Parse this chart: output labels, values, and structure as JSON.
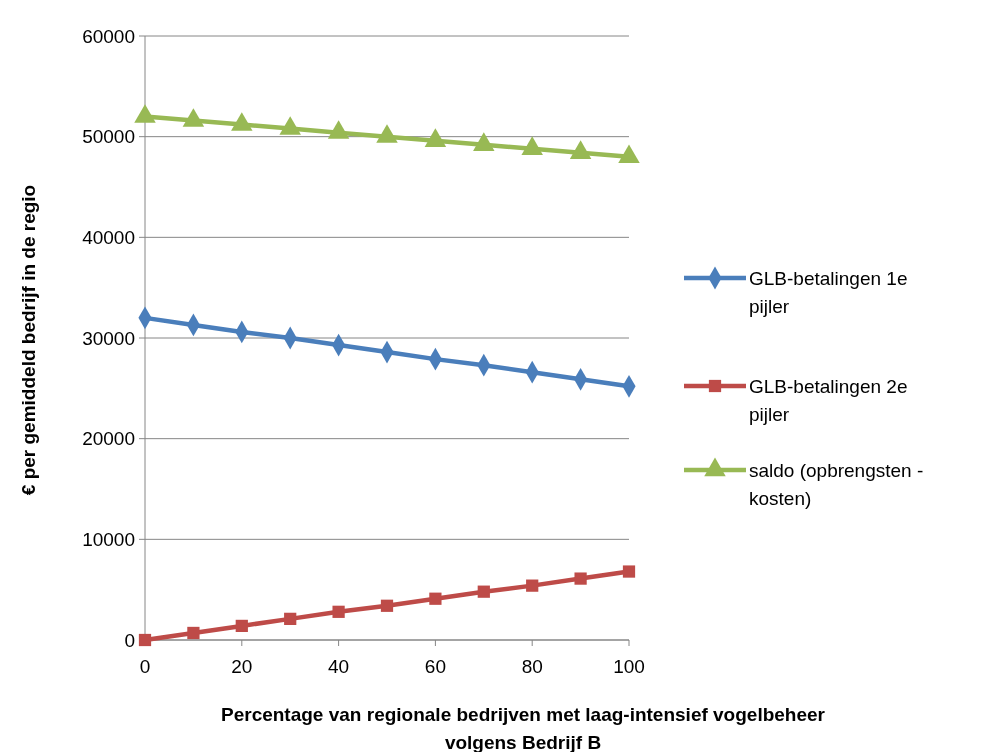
{
  "chart_data": {
    "type": "line",
    "xlabel": "Percentage van regionale bedrijven met laag-intensief vogelbeheer volgens Bedrijf B",
    "ylabel": "€ per gemiddeld bedrijf in de regio",
    "x": [
      0,
      10,
      20,
      30,
      40,
      50,
      60,
      70,
      80,
      90,
      100
    ],
    "xlim": [
      0,
      100
    ],
    "xticks": [
      0,
      20,
      40,
      60,
      80,
      100
    ],
    "ylim": [
      0,
      60000
    ],
    "yticks": [
      0,
      10000,
      20000,
      30000,
      40000,
      50000,
      60000
    ],
    "grid": "y",
    "legend": "right",
    "line_style": "solid",
    "series": [
      {
        "name": "GLB-betalingen 1e pijler",
        "color": "#4a7ebb",
        "marker": "diamond",
        "values": [
          32000,
          31300,
          30600,
          30000,
          29300,
          28600,
          27900,
          27300,
          26600,
          25900,
          25200
        ]
      },
      {
        "name": "GLB-betalingen 2e pijler",
        "color": "#be4b48",
        "marker": "square",
        "values": [
          0,
          700,
          1400,
          2100,
          2800,
          3400,
          4100,
          4800,
          5400,
          6100,
          6800
        ]
      },
      {
        "name": "saldo (opbrengsten - kosten)",
        "color": "#98b954",
        "marker": "triangle",
        "values": [
          52000,
          51600,
          51200,
          50800,
          50400,
          50000,
          49600,
          49200,
          48800,
          48400,
          48000
        ]
      }
    ]
  }
}
